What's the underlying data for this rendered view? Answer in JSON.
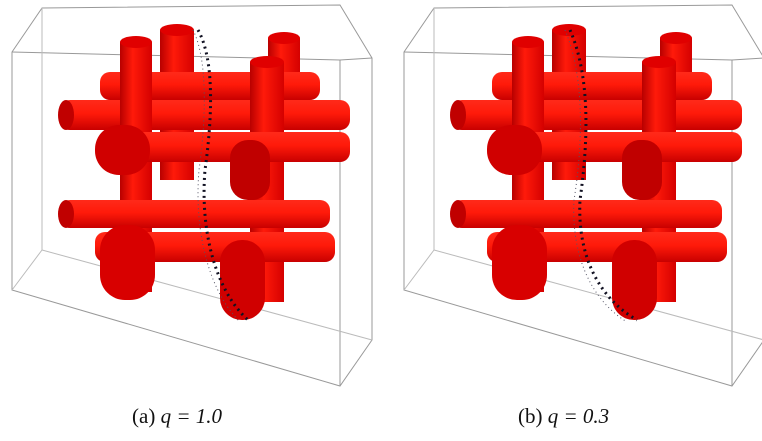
{
  "figure": {
    "panels": [
      {
        "label": "(a)",
        "math": "q = 1.0"
      },
      {
        "label": "(b)",
        "math": "q = 0.3"
      }
    ]
  }
}
